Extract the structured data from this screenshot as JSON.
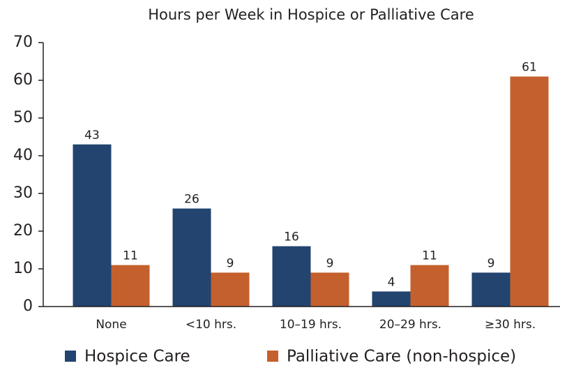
{
  "chart_data": {
    "type": "bar",
    "title": "Hours per Week in Hospice or Palliative Care",
    "categories": [
      "None",
      "<10 hrs.",
      "10–19 hrs.",
      "20–29 hrs.",
      "≥30 hrs."
    ],
    "series": [
      {
        "name": "Hospice Care",
        "color": "#22446f",
        "values": [
          43,
          26,
          16,
          4,
          9
        ]
      },
      {
        "name": "Palliative Care (non-hospice)",
        "color": "#c4602d",
        "values": [
          11,
          9,
          9,
          11,
          61
        ]
      }
    ],
    "ylim": [
      0,
      70
    ],
    "yticks": [
      0,
      10,
      20,
      30,
      40,
      50,
      60,
      70
    ],
    "grid": false,
    "legend": "bottom"
  }
}
